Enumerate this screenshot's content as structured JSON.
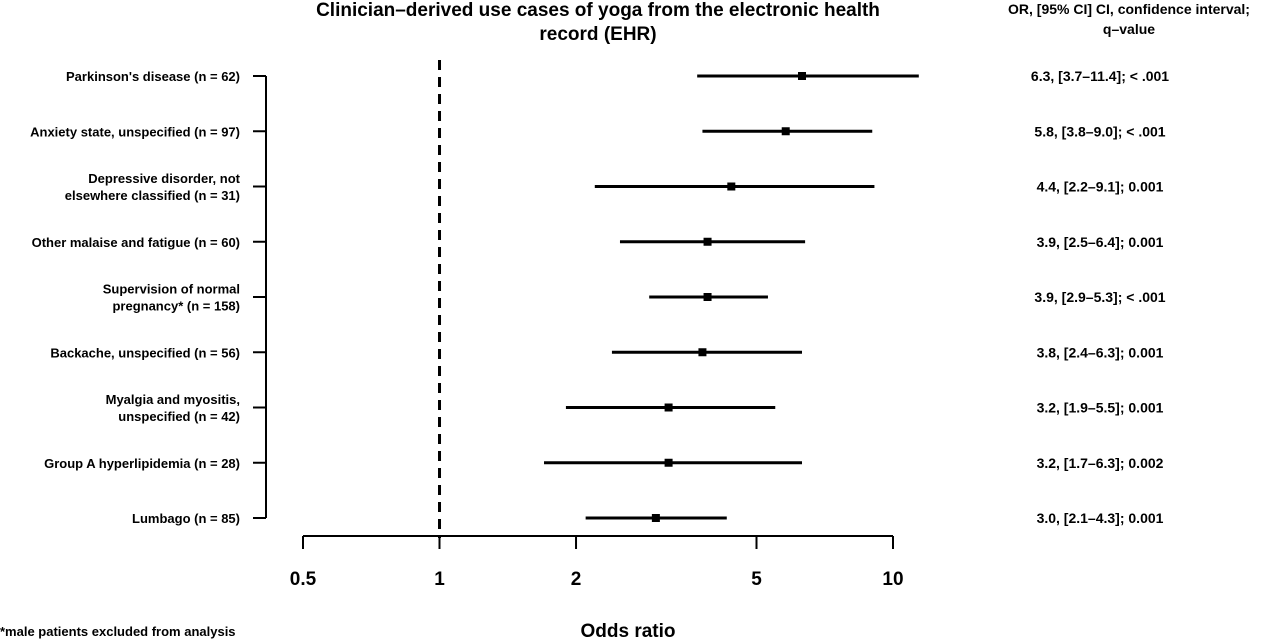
{
  "chart_data": {
    "type": "forest",
    "title_lines": [
      "Clinician–derived use cases of yoga from the electronic health",
      "record (EHR)"
    ],
    "right_header_lines": [
      "OR, [95% CI] CI, confidence interval;",
      "q–value"
    ],
    "xlabel": "Odds ratio",
    "x_scale": "log",
    "xlim": [
      0.5,
      10
    ],
    "x_ticks": [
      0.5,
      1,
      2,
      5,
      10
    ],
    "x_tick_labels": [
      "0.5",
      "1",
      "2",
      "5",
      "10"
    ],
    "reference_line": 1,
    "footnote": "*male patients excluded from analysis",
    "rows": [
      {
        "label_lines": [
          "Parkinson's disease (n = 62)"
        ],
        "or": 6.3,
        "ci": [
          3.7,
          11.4
        ],
        "annotation": "6.3, [3.7–11.4]; < .001"
      },
      {
        "label_lines": [
          "Anxiety state, unspecified (n = 97)"
        ],
        "or": 5.8,
        "ci": [
          3.8,
          9.0
        ],
        "annotation": "5.8, [3.8–9.0]; < .001"
      },
      {
        "label_lines": [
          "Depressive disorder, not",
          "elsewhere classified (n = 31)"
        ],
        "or": 4.4,
        "ci": [
          2.2,
          9.1
        ],
        "annotation": "4.4, [2.2–9.1]; 0.001"
      },
      {
        "label_lines": [
          "Other malaise and fatigue (n = 60)"
        ],
        "or": 3.9,
        "ci": [
          2.5,
          6.4
        ],
        "annotation": "3.9, [2.5–6.4]; 0.001"
      },
      {
        "label_lines": [
          "Supervision of normal",
          "pregnancy* (n = 158)"
        ],
        "or": 3.9,
        "ci": [
          2.9,
          5.3
        ],
        "annotation": "3.9, [2.9–5.3]; < .001"
      },
      {
        "label_lines": [
          "Backache, unspecified (n = 56)"
        ],
        "or": 3.8,
        "ci": [
          2.4,
          6.3
        ],
        "annotation": "3.8, [2.4–6.3]; 0.001"
      },
      {
        "label_lines": [
          "Myalgia and myositis,",
          "unspecified (n = 42)"
        ],
        "or": 3.2,
        "ci": [
          1.9,
          5.5
        ],
        "annotation": "3.2, [1.9–5.5]; 0.001"
      },
      {
        "label_lines": [
          "Group A hyperlipidemia (n = 28)"
        ],
        "or": 3.2,
        "ci": [
          1.7,
          6.3
        ],
        "annotation": "3.2, [1.7–6.3]; 0.002"
      },
      {
        "label_lines": [
          "Lumbago (n = 85)"
        ],
        "or": 3.0,
        "ci": [
          2.1,
          4.3
        ],
        "annotation": "3.0, [2.1–4.3]; 0.001"
      }
    ]
  }
}
